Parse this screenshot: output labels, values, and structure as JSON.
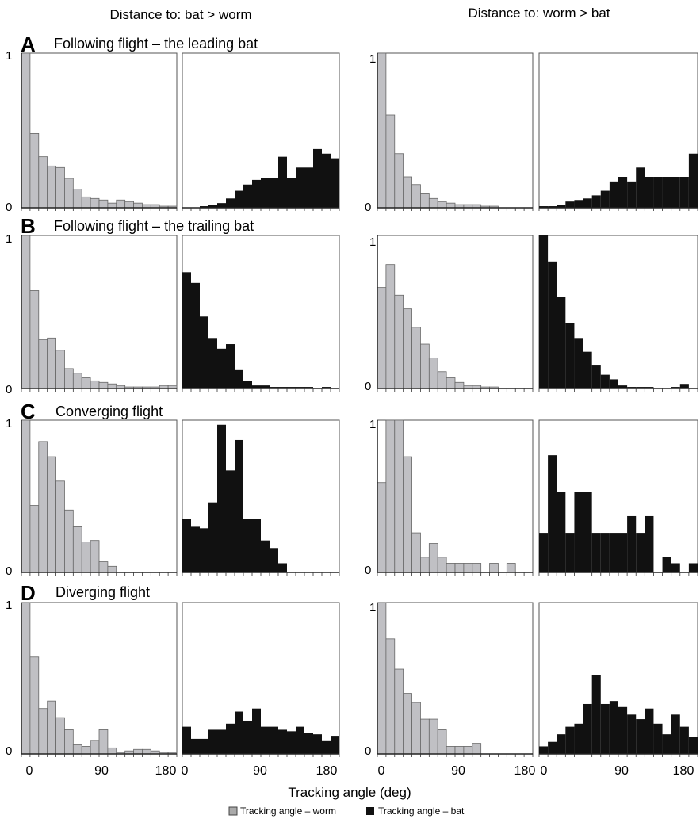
{
  "column_titles": [
    "Distance to: bat > worm",
    "Distance to: worm > bat"
  ],
  "panel_letters": [
    "A",
    "B",
    "C",
    "D"
  ],
  "row_titles": [
    "Following flight – the leading bat",
    "Following flight – the trailing bat",
    "Converging flight",
    "Diverging flight"
  ],
  "x_axis_label": "Tracking angle (deg)",
  "y_tick_labels": [
    "0",
    "1"
  ],
  "x_tick_labels": [
    "0",
    "90",
    "180"
  ],
  "legend": {
    "worm": "Tracking angle – worm",
    "bat": "Tracking angle – bat"
  },
  "colors": {
    "worm": "#c0c0c4",
    "bat": "#111111",
    "frame": "#555555"
  },
  "chart_data": {
    "type": "bar",
    "bins_deg": [
      0,
      10,
      20,
      30,
      40,
      50,
      60,
      70,
      80,
      90,
      100,
      110,
      120,
      130,
      140,
      150,
      160,
      170
    ],
    "bin_width_deg": 10,
    "xlim": [
      0,
      180
    ],
    "ylim": [
      0,
      1
    ],
    "panels": [
      {
        "row": "A",
        "column": "Distance to: bat > worm",
        "series": [
          {
            "name": "Tracking angle – worm",
            "values": [
              1.0,
              0.48,
              0.33,
              0.27,
              0.26,
              0.19,
              0.12,
              0.07,
              0.06,
              0.05,
              0.03,
              0.05,
              0.04,
              0.03,
              0.02,
              0.02,
              0.01,
              0.01
            ]
          },
          {
            "name": "Tracking angle – bat",
            "values": [
              0.0,
              0.0,
              0.01,
              0.02,
              0.03,
              0.06,
              0.11,
              0.15,
              0.18,
              0.19,
              0.19,
              0.33,
              0.19,
              0.26,
              0.26,
              0.38,
              0.35,
              0.32
            ]
          }
        ]
      },
      {
        "row": "A",
        "column": "Distance to: worm > bat",
        "series": [
          {
            "name": "Tracking angle – worm",
            "values": [
              1.0,
              0.6,
              0.35,
              0.2,
              0.15,
              0.09,
              0.06,
              0.04,
              0.03,
              0.02,
              0.02,
              0.02,
              0.01,
              0.01,
              0.0,
              0.0,
              0.0,
              0.0
            ]
          },
          {
            "name": "Tracking angle – bat",
            "values": [
              0.01,
              0.01,
              0.02,
              0.04,
              0.05,
              0.06,
              0.08,
              0.11,
              0.17,
              0.2,
              0.17,
              0.26,
              0.2,
              0.2,
              0.2,
              0.2,
              0.2,
              0.35
            ]
          }
        ]
      },
      {
        "row": "B",
        "column": "Distance to: bat > worm",
        "series": [
          {
            "name": "Tracking angle – worm",
            "values": [
              1.0,
              0.64,
              0.32,
              0.33,
              0.25,
              0.13,
              0.1,
              0.07,
              0.05,
              0.04,
              0.03,
              0.02,
              0.01,
              0.01,
              0.01,
              0.01,
              0.02,
              0.02
            ]
          },
          {
            "name": "Tracking angle – bat",
            "values": [
              0.76,
              0.69,
              0.47,
              0.33,
              0.26,
              0.29,
              0.12,
              0.05,
              0.02,
              0.02,
              0.01,
              0.01,
              0.01,
              0.01,
              0.01,
              0.0,
              0.01,
              0.0
            ]
          }
        ]
      },
      {
        "row": "B",
        "column": "Distance to: worm > bat",
        "series": [
          {
            "name": "Tracking angle – worm",
            "values": [
              0.66,
              0.81,
              0.61,
              0.52,
              0.4,
              0.29,
              0.2,
              0.11,
              0.07,
              0.04,
              0.02,
              0.02,
              0.01,
              0.01,
              0.0,
              0.0,
              0.0,
              0.0
            ]
          },
          {
            "name": "Tracking angle – bat",
            "values": [
              1.0,
              0.83,
              0.6,
              0.43,
              0.33,
              0.24,
              0.15,
              0.09,
              0.06,
              0.02,
              0.01,
              0.01,
              0.01,
              0.0,
              0.0,
              0.01,
              0.03,
              0.0
            ]
          }
        ]
      },
      {
        "row": "C",
        "column": "Distance to: bat > worm",
        "series": [
          {
            "name": "Tracking angle – worm",
            "values": [
              1.0,
              0.44,
              0.86,
              0.76,
              0.6,
              0.41,
              0.3,
              0.2,
              0.21,
              0.07,
              0.04,
              0.0,
              0.0,
              0.0,
              0.0,
              0.0,
              0.0,
              0.0
            ]
          },
          {
            "name": "Tracking angle – bat",
            "values": [
              0.35,
              0.3,
              0.29,
              0.46,
              0.97,
              0.67,
              0.87,
              0.35,
              0.35,
              0.21,
              0.16,
              0.06,
              0.0,
              0.0,
              0.0,
              0.0,
              0.0,
              0.0
            ]
          }
        ]
      },
      {
        "row": "C",
        "column": "Distance to: worm > bat",
        "series": [
          {
            "name": "Tracking angle – worm",
            "values": [
              0.59,
              1.0,
              1.0,
              0.76,
              0.26,
              0.1,
              0.19,
              0.1,
              0.06,
              0.06,
              0.06,
              0.06,
              0.0,
              0.06,
              0.0,
              0.06,
              0.0,
              0.0
            ]
          },
          {
            "name": "Tracking angle – bat",
            "values": [
              0.26,
              0.77,
              0.53,
              0.26,
              0.53,
              0.53,
              0.26,
              0.26,
              0.26,
              0.26,
              0.37,
              0.26,
              0.37,
              0.0,
              0.1,
              0.06,
              0.0,
              0.06
            ]
          }
        ]
      },
      {
        "row": "D",
        "column": "Distance to: bat > worm",
        "series": [
          {
            "name": "Tracking angle – worm",
            "values": [
              1.0,
              0.64,
              0.3,
              0.35,
              0.24,
              0.16,
              0.06,
              0.05,
              0.09,
              0.16,
              0.04,
              0.01,
              0.02,
              0.03,
              0.03,
              0.02,
              0.01,
              0.01
            ]
          },
          {
            "name": "Tracking angle – bat",
            "values": [
              0.18,
              0.1,
              0.1,
              0.16,
              0.16,
              0.2,
              0.28,
              0.22,
              0.3,
              0.18,
              0.18,
              0.16,
              0.15,
              0.18,
              0.14,
              0.13,
              0.09,
              0.12
            ]
          }
        ]
      },
      {
        "row": "D",
        "column": "Distance to: worm > bat",
        "series": [
          {
            "name": "Tracking angle – worm",
            "values": [
              1.0,
              0.76,
              0.56,
              0.4,
              0.34,
              0.23,
              0.23,
              0.16,
              0.05,
              0.05,
              0.05,
              0.07,
              0.0,
              0.0,
              0.0,
              0.0,
              0.0,
              0.0
            ]
          },
          {
            "name": "Tracking angle – bat",
            "values": [
              0.05,
              0.08,
              0.13,
              0.18,
              0.2,
              0.33,
              0.52,
              0.33,
              0.35,
              0.31,
              0.26,
              0.23,
              0.3,
              0.2,
              0.13,
              0.26,
              0.18,
              0.11
            ]
          }
        ]
      }
    ]
  }
}
